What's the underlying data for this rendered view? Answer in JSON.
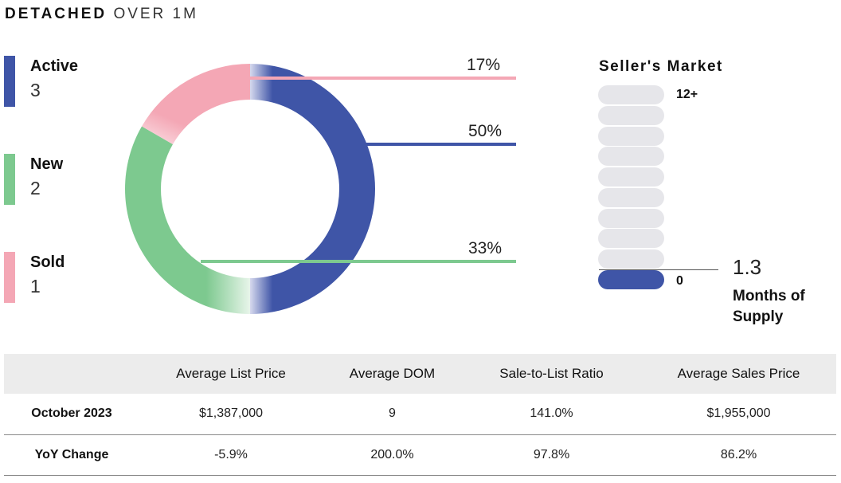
{
  "header": {
    "title_bold": "DETACHED",
    "title_light": "OVER 1M"
  },
  "legend": [
    {
      "label": "Active",
      "value": "3",
      "color": "#3f55a7"
    },
    {
      "label": "New",
      "value": "2",
      "color": "#7dc98f"
    },
    {
      "label": "Sold",
      "value": "1",
      "color": "#f4a7b5"
    }
  ],
  "chart_data": {
    "type": "pie",
    "variant": "donut",
    "categories": [
      "Active",
      "New",
      "Sold"
    ],
    "values": [
      3,
      2,
      1
    ],
    "percent_labels": [
      "50%",
      "33%",
      "17%"
    ],
    "colors": [
      "#3f55a7",
      "#7dc98f",
      "#f4a7b5"
    ]
  },
  "market": {
    "title": "Seller's Market",
    "scale_max_label": "12+",
    "scale_min_label": "0",
    "months_of_supply": 1.3,
    "months_value_text": "1.3",
    "months_label": "Months of Supply",
    "pill_count": 10,
    "active_pill_color": "#3f55a7",
    "inactive_pill_color": "#e6e6ea"
  },
  "table": {
    "headers": [
      "",
      "Average List Price",
      "Average DOM",
      "Sale-to-List Ratio",
      "Average Sales Price"
    ],
    "rows": [
      [
        "October 2023",
        "$1,387,000",
        "9",
        "141.0%",
        "$1,955,000"
      ],
      [
        "YoY Change",
        "-5.9%",
        "200.0%",
        "97.8%",
        "86.2%"
      ]
    ]
  }
}
